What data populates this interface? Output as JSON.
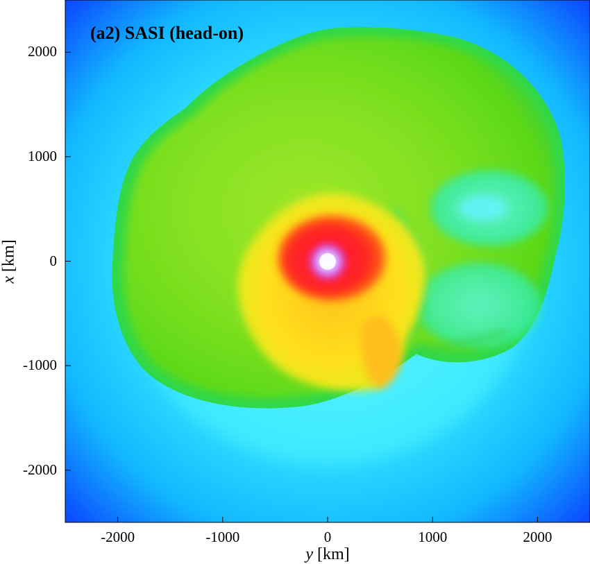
{
  "chart_data": {
    "type": "heatmap",
    "title": "(a2) SASI (head-on)",
    "xlabel_var": "y",
    "xlabel_unit": "[km]",
    "ylabel_var": "x",
    "ylabel_unit": "[km]",
    "xlim": [
      -2500,
      2500
    ],
    "ylim": [
      -2500,
      2500
    ],
    "xticks": [
      -2000,
      -1000,
      0,
      1000,
      2000
    ],
    "yticks": [
      2000,
      1000,
      0,
      -1000,
      -2000
    ],
    "grid": false,
    "colormap_stops": [
      "#ffffff",
      "#cc33ff",
      "#ff1a1a",
      "#ffee00",
      "#66ee00",
      "#00ffff",
      "#0000ff"
    ],
    "features": {
      "core_center_km": [
        0,
        0
      ],
      "shock_front_max_radius_km": 2250
    }
  }
}
